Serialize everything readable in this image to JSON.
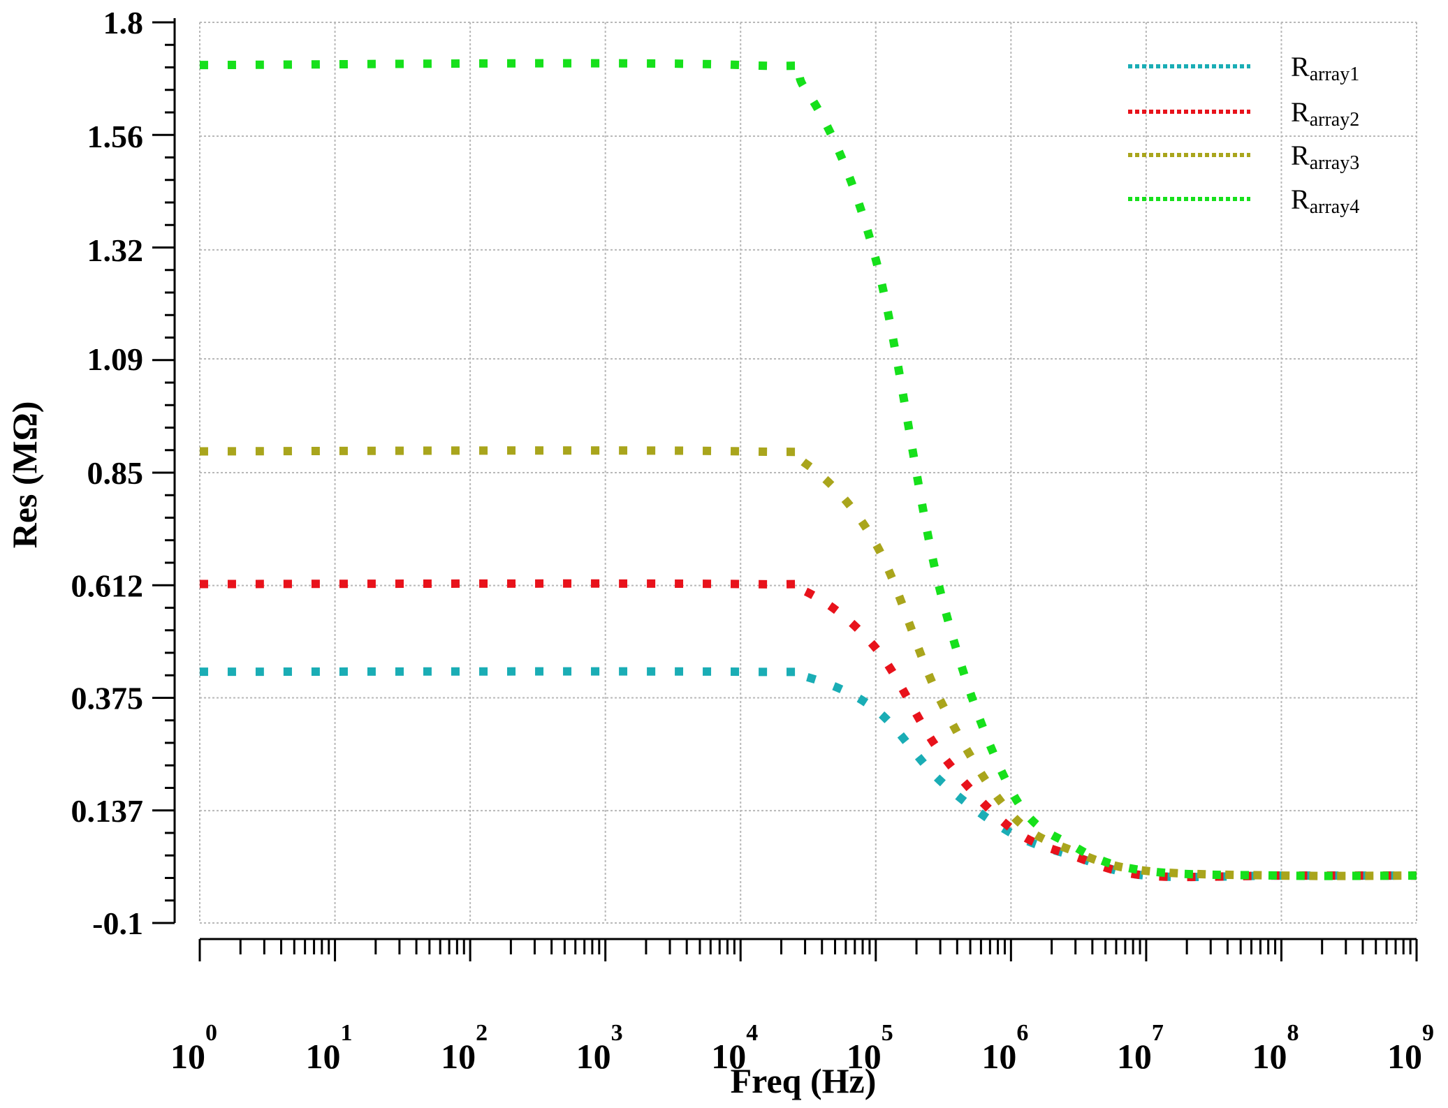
{
  "chart_data": {
    "type": "line",
    "xlabel": "Freq (Hz)",
    "ylabel": "Res (MΩ)",
    "xscale": "log",
    "xlim": [
      1,
      1000000000
    ],
    "ylim": [
      -0.1,
      1.8
    ],
    "grid": true,
    "legend_position": "top-right",
    "yticks": [
      -0.1,
      0.137,
      0.375,
      0.612,
      0.85,
      1.09,
      1.32,
      1.56,
      1.8
    ],
    "ytick_labels": [
      "-0.1",
      "0.137",
      "0.375",
      "0.612",
      "0.85",
      "1.09",
      "1.32",
      "1.56",
      "1.8"
    ],
    "xticks": [
      {
        "base": "10",
        "exp": "0",
        "value": 1
      },
      {
        "base": "10",
        "exp": "1",
        "value": 10
      },
      {
        "base": "10",
        "exp": "2",
        "value": 100
      },
      {
        "base": "10",
        "exp": "3",
        "value": 1000
      },
      {
        "base": "10",
        "exp": "4",
        "value": 10000
      },
      {
        "base": "10",
        "exp": "5",
        "value": 100000
      },
      {
        "base": "10",
        "exp": "6",
        "value": 1000000
      },
      {
        "base": "10",
        "exp": "7",
        "value": 10000000
      },
      {
        "base": "10",
        "exp": "8",
        "value": 100000000
      },
      {
        "base": "10",
        "exp": "9",
        "value": 1000000000
      }
    ],
    "series": [
      {
        "name": "Rarray1",
        "label_main": "R",
        "label_sub": "array1",
        "color": "#1aadb5",
        "x": [
          1,
          10000,
          30000,
          100000,
          300000,
          1000000,
          3000000,
          10000000,
          100000000,
          1000000000
        ],
        "y": [
          0.43,
          0.43,
          0.42,
          0.35,
          0.2,
          0.09,
          0.04,
          0.0,
          0.0,
          0.0
        ]
      },
      {
        "name": "Rarray2",
        "label_main": "R",
        "label_sub": "array2",
        "color": "#e8121b",
        "x": [
          1,
          10000,
          30000,
          100000,
          300000,
          1000000,
          3000000,
          10000000,
          100000000,
          1000000000
        ],
        "y": [
          0.615,
          0.615,
          0.6,
          0.48,
          0.26,
          0.1,
          0.04,
          0.0,
          0.0,
          0.0
        ]
      },
      {
        "name": "Rarray3",
        "label_main": "R",
        "label_sub": "array3",
        "color": "#a9a51c",
        "x": [
          1,
          10000,
          30000,
          100000,
          300000,
          1000000,
          3000000,
          10000000,
          100000000,
          1000000000
        ],
        "y": [
          0.895,
          0.895,
          0.87,
          0.7,
          0.37,
          0.13,
          0.05,
          0.01,
          0.0,
          0.0
        ]
      },
      {
        "name": "Rarray4",
        "label_main": "R",
        "label_sub": "array4",
        "color": "#16e01b",
        "x": [
          1,
          10000,
          30000,
          100000,
          300000,
          1000000,
          3000000,
          10000000,
          100000000,
          1000000000
        ],
        "y": [
          1.71,
          1.71,
          1.66,
          1.3,
          0.6,
          0.18,
          0.06,
          0.01,
          0.0,
          0.0
        ]
      }
    ]
  }
}
